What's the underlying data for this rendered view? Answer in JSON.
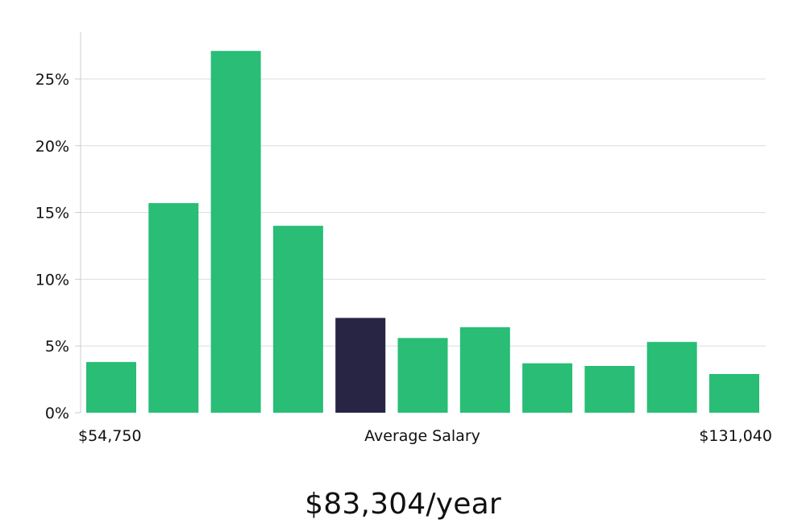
{
  "chart_data": {
    "type": "bar",
    "categories": [
      "bin-1",
      "bin-2",
      "bin-3",
      "bin-4",
      "bin-5",
      "bin-6",
      "bin-7",
      "bin-8",
      "bin-9",
      "bin-10",
      "bin-11"
    ],
    "values": [
      3.8,
      15.7,
      27.1,
      14.0,
      7.1,
      5.6,
      6.4,
      3.7,
      3.5,
      5.3,
      2.9
    ],
    "highlight_index": 4,
    "ylim": [
      0,
      28.5
    ],
    "yticks": [
      0,
      5,
      10,
      15,
      20,
      25
    ],
    "ytick_labels": [
      "0%",
      "5%",
      "10%",
      "15%",
      "20%",
      "25%"
    ],
    "x_labels": {
      "left": "$54,750",
      "center": "Average Salary",
      "right": "$131,040"
    },
    "colors": {
      "bar": "#29bd76",
      "highlight": "#272444",
      "grid": "#dddddd",
      "axis": "#cccccc",
      "text": "#111111"
    },
    "grid": true,
    "legend": "none"
  },
  "headline": "$83,304/year"
}
